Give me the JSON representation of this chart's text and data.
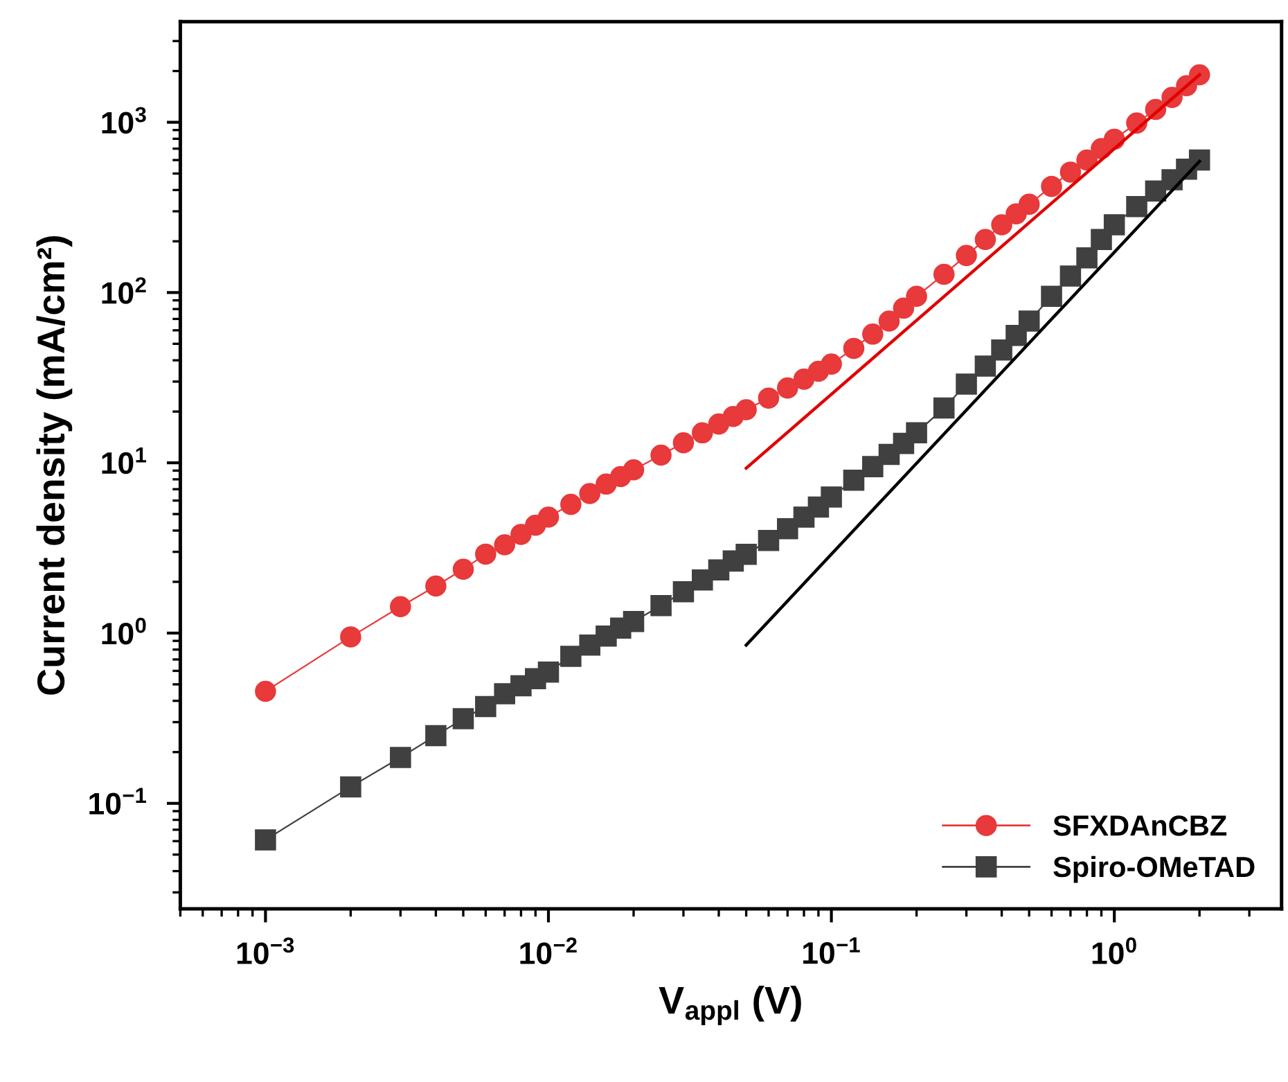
{
  "chart_data": {
    "type": "line",
    "xlabel": "V$_{appl}$ (V)",
    "ylabel": "Current density (mA/cm²)",
    "log": "xy",
    "xlim": [
      0.0005,
      3.9
    ],
    "ylim": [
      0.024,
      3900
    ],
    "xticks": [
      {
        "value": 0.001,
        "label": "10$^{−3}$"
      },
      {
        "value": 0.01,
        "label": "10$^{−2}$"
      },
      {
        "value": 0.1,
        "label": "10$^{−1}$"
      },
      {
        "value": 1,
        "label": "10$^{0}$"
      }
    ],
    "yticks": [
      {
        "value": 0.1,
        "label": "10$^{−1}$"
      },
      {
        "value": 1,
        "label": "10$^{0}$"
      },
      {
        "value": 10,
        "label": "10$^{1}$"
      },
      {
        "value": 100,
        "label": "10$^{2}$"
      },
      {
        "value": 1000,
        "label": "10$^{3}$"
      }
    ],
    "grid": false,
    "legend": "bottom right",
    "series": [
      {
        "name": "SFXDAnCBZ",
        "color": "#e8393b",
        "marker": "circle",
        "line_style": "solid",
        "x": [
          0.001,
          0.002,
          0.003,
          0.004,
          0.005,
          0.006,
          0.007,
          0.008,
          0.009,
          0.01,
          0.012,
          0.014,
          0.016,
          0.018,
          0.02,
          0.025,
          0.03,
          0.035,
          0.04,
          0.045,
          0.05,
          0.06,
          0.07,
          0.08,
          0.09,
          0.1,
          0.12,
          0.14,
          0.16,
          0.18,
          0.2,
          0.25,
          0.3,
          0.35,
          0.4,
          0.45,
          0.5,
          0.6,
          0.7,
          0.8,
          0.9,
          1.0,
          1.2,
          1.4,
          1.6,
          1.8,
          2.0
        ],
        "values": [
          0.455,
          0.95,
          1.43,
          1.89,
          2.37,
          2.91,
          3.3,
          3.8,
          4.3,
          4.8,
          5.7,
          6.6,
          7.5,
          8.3,
          9.1,
          11.1,
          13.1,
          15,
          16.9,
          18.7,
          20.5,
          24,
          27.5,
          31,
          34.5,
          38,
          47,
          57,
          68,
          81,
          95,
          128,
          165,
          205,
          250,
          290,
          330,
          420,
          510,
          600,
          700,
          795,
          990,
          1190,
          1400,
          1640,
          1900
        ]
      },
      {
        "name": "Spiro-OMeTAD",
        "color": "#404040",
        "marker": "square",
        "line_style": "solid",
        "x": [
          0.001,
          0.002,
          0.003,
          0.004,
          0.005,
          0.006,
          0.007,
          0.008,
          0.009,
          0.01,
          0.012,
          0.014,
          0.016,
          0.018,
          0.02,
          0.025,
          0.03,
          0.035,
          0.04,
          0.045,
          0.05,
          0.06,
          0.07,
          0.08,
          0.09,
          0.1,
          0.12,
          0.14,
          0.16,
          0.18,
          0.2,
          0.25,
          0.3,
          0.35,
          0.4,
          0.45,
          0.5,
          0.6,
          0.7,
          0.8,
          0.9,
          1.0,
          1.2,
          1.4,
          1.6,
          1.8,
          2.0
        ],
        "values": [
          0.061,
          0.125,
          0.186,
          0.25,
          0.314,
          0.37,
          0.44,
          0.49,
          0.54,
          0.59,
          0.73,
          0.85,
          0.96,
          1.07,
          1.17,
          1.45,
          1.75,
          2.05,
          2.35,
          2.65,
          2.9,
          3.5,
          4.1,
          4.8,
          5.5,
          6.3,
          7.9,
          9.5,
          11.2,
          13,
          15,
          21,
          29,
          37,
          46,
          56,
          68,
          95,
          125,
          160,
          205,
          250,
          320,
          395,
          460,
          530,
          600
        ]
      },
      {
        "color": "#e00000",
        "marker": "none",
        "line_style": "solid",
        "x": [
          0.05,
          2.0
        ],
        "values": [
          9.3,
          1900
        ]
      },
      {
        "color": "#000000",
        "marker": "none",
        "line_style": "solid",
        "x": [
          0.05,
          2.0
        ],
        "values": [
          0.85,
          590
        ]
      }
    ]
  }
}
